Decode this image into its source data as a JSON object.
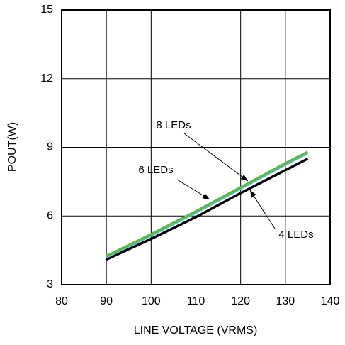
{
  "chart_data": {
    "type": "line",
    "xlabel": "LINE VOLTAGE (VRMS)",
    "ylabel": "POUT(W)",
    "x": [
      90,
      100,
      110,
      120,
      130,
      135
    ],
    "series": [
      {
        "name": "4 LEDs",
        "color": "#000000",
        "values": [
          4.1,
          5.0,
          5.95,
          7.0,
          8.0,
          8.5
        ]
      },
      {
        "name": "6 LEDs",
        "color": "#5fb8e6",
        "values": [
          4.2,
          5.15,
          6.15,
          7.2,
          8.25,
          8.75
        ]
      },
      {
        "name": "8 LEDs",
        "color": "#5cb84a",
        "values": [
          4.25,
          5.2,
          6.2,
          7.25,
          8.3,
          8.8
        ]
      }
    ],
    "xlim": [
      80,
      140
    ],
    "xticks": [
      80,
      90,
      100,
      110,
      120,
      130,
      140
    ],
    "ylim": [
      3,
      15
    ],
    "yticks": [
      3,
      6,
      9,
      12,
      15
    ],
    "grid": true
  }
}
